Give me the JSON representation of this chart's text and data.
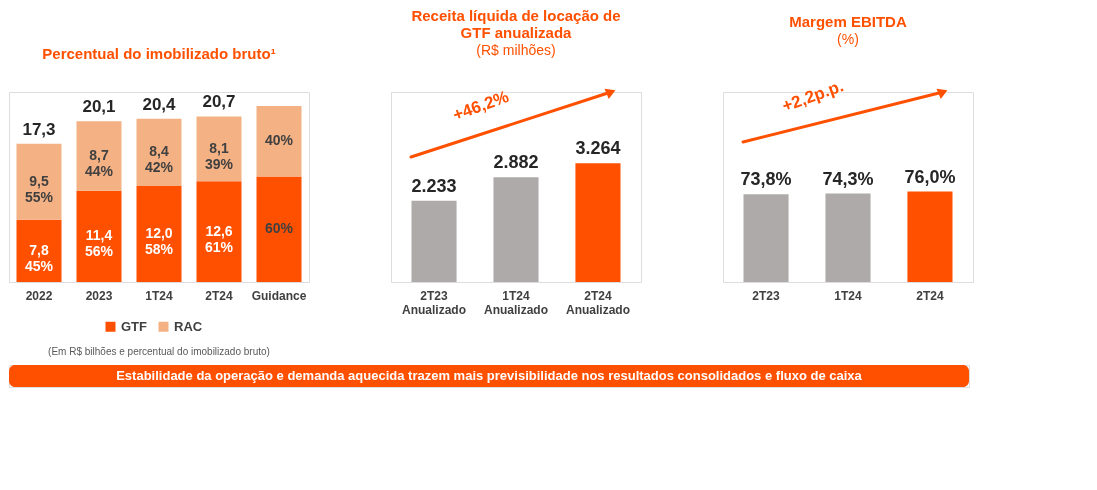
{
  "chart_data": [
    {
      "type": "bar",
      "title": "Percentual do imobilizado bruto¹",
      "categories": [
        "2022",
        "2023",
        "1T24",
        "2T24",
        "Guidance"
      ],
      "stacked": true,
      "legend": "bottom",
      "series": [
        {
          "name": "GTF",
          "color": "#ff5000",
          "values": [
            7.8,
            11.4,
            12.0,
            12.6,
            13.2
          ],
          "value_labels": [
            "7,8\n45%",
            "11,4\n56%",
            "12,0\n58%",
            "12,6\n61%",
            null
          ]
        },
        {
          "name": "RAC",
          "color": "#f4b183",
          "values": [
            9.5,
            8.7,
            8.4,
            8.1,
            8.8
          ],
          "value_labels": [
            "9,5\n55%",
            "8,7\n44%",
            "8,4\n42%",
            "8,1\n39%",
            null
          ]
        }
      ],
      "totals": [
        "17,3",
        "20,1",
        "20,4",
        "20,7",
        null
      ],
      "annotations": [
        "(Em R$ bilhões e percentual do imobilizado bruto)",
        "Estabilidade da operação e demanda aquecida trazem mais previsibilidade nos resultados consolidados e fluxo de caixa",
        "60%",
        "40%"
      ]
    },
    {
      "type": "bar",
      "title": "Receita líquida de locação de\nGTF anualizada",
      "subtitle": "(R$ milhões)",
      "categories": [
        "2T23\nAnualizado",
        "1T24\nAnualizado",
        "2T24\nAnualizado"
      ],
      "values": [
        2233,
        2882,
        3264
      ],
      "colors": [
        "#aeaaaa",
        "#aeaaaa",
        "#ff5000"
      ],
      "value_labels": [
        "2.233",
        "2.882",
        "3.264"
      ],
      "annotations": [
        "+46,2%"
      ]
    },
    {
      "type": "bar",
      "title": "Margem EBITDA",
      "subtitle": "(%)",
      "categories": [
        "2T23",
        "1T24",
        "2T24"
      ],
      "values": [
        73.8,
        74.3,
        76.0
      ],
      "colors": [
        "#aeaaaa",
        "#aeaaaa",
        "#ff5000"
      ],
      "value_labels": [
        "73,8%",
        "74,3%",
        "76,0%"
      ],
      "annotations": [
        "+2,2p.p."
      ]
    }
  ]
}
